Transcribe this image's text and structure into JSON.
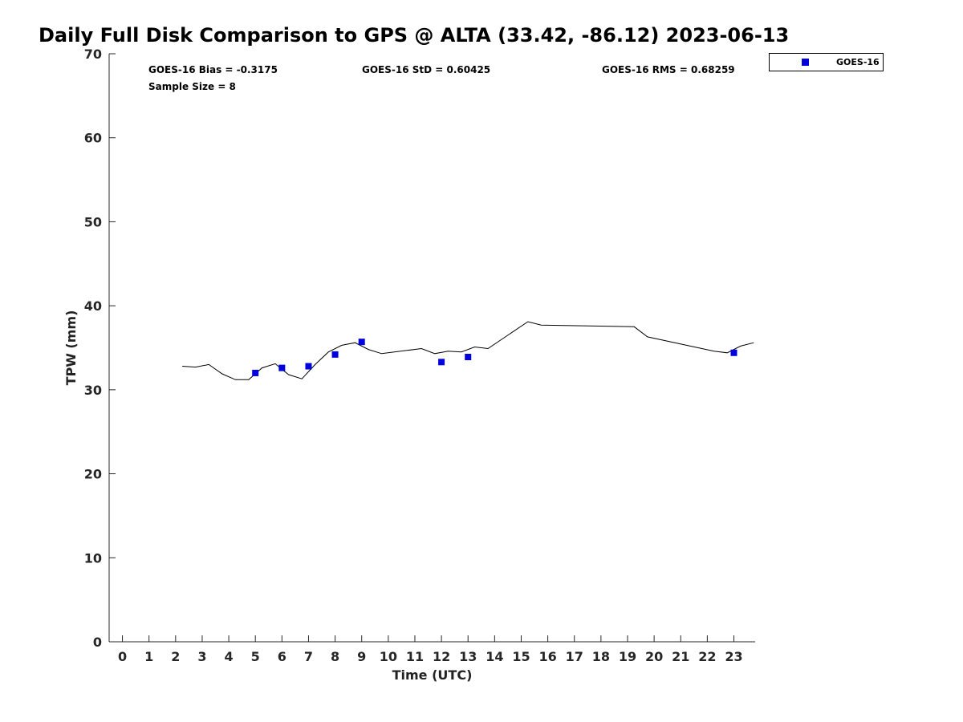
{
  "chart_data": {
    "type": "scatter",
    "title": "Daily Full Disk Comparison to GPS @ ALTA (33.42, -86.12) 2023-06-13",
    "xlabel": "Time (UTC)",
    "ylabel": "TPW (mm)",
    "xlim": [
      -0.5,
      23.8
    ],
    "ylim": [
      0,
      70
    ],
    "xticks": [
      0,
      1,
      2,
      3,
      4,
      5,
      6,
      7,
      8,
      9,
      10,
      11,
      12,
      13,
      14,
      15,
      16,
      17,
      18,
      19,
      20,
      21,
      22,
      23
    ],
    "yticks": [
      0,
      10,
      20,
      30,
      40,
      50,
      60,
      70
    ],
    "grid": false,
    "legend_position": "top-right-outside",
    "stats": {
      "bias": "GOES-16 Bias = -0.3175",
      "std": "GOES-16 StD = 0.60425",
      "rms": "GOES-16 RMS = 0.68259",
      "sample_size": "Sample Size = 8"
    },
    "series": [
      {
        "name": "GOES-16",
        "kind": "scatter",
        "marker": "square",
        "color": "#0000dd",
        "points": [
          {
            "x": 5.0,
            "y": 32.0
          },
          {
            "x": 6.0,
            "y": 32.6
          },
          {
            "x": 7.0,
            "y": 32.8
          },
          {
            "x": 8.0,
            "y": 34.2
          },
          {
            "x": 9.0,
            "y": 35.7
          },
          {
            "x": 12.0,
            "y": 33.3
          },
          {
            "x": 13.0,
            "y": 33.9
          },
          {
            "x": 23.0,
            "y": 34.4
          }
        ]
      },
      {
        "kind": "line",
        "color": "#000000",
        "points": [
          {
            "x": 2.25,
            "y": 32.8
          },
          {
            "x": 2.75,
            "y": 32.7
          },
          {
            "x": 3.25,
            "y": 33.0
          },
          {
            "x": 3.75,
            "y": 31.9
          },
          {
            "x": 4.25,
            "y": 31.2
          },
          {
            "x": 4.75,
            "y": 31.2
          },
          {
            "x": 5.25,
            "y": 32.6
          },
          {
            "x": 5.75,
            "y": 33.1
          },
          {
            "x": 6.25,
            "y": 31.8
          },
          {
            "x": 6.75,
            "y": 31.3
          },
          {
            "x": 7.25,
            "y": 33.0
          },
          {
            "x": 7.75,
            "y": 34.5
          },
          {
            "x": 8.25,
            "y": 35.3
          },
          {
            "x": 8.75,
            "y": 35.6
          },
          {
            "x": 9.25,
            "y": 34.8
          },
          {
            "x": 9.75,
            "y": 34.3
          },
          {
            "x": 11.25,
            "y": 34.9
          },
          {
            "x": 11.75,
            "y": 34.3
          },
          {
            "x": 12.25,
            "y": 34.6
          },
          {
            "x": 12.75,
            "y": 34.5
          },
          {
            "x": 13.25,
            "y": 35.1
          },
          {
            "x": 13.75,
            "y": 34.9
          },
          {
            "x": 15.25,
            "y": 38.1
          },
          {
            "x": 15.75,
            "y": 37.7
          },
          {
            "x": 19.25,
            "y": 37.5
          },
          {
            "x": 19.75,
            "y": 36.3
          },
          {
            "x": 22.25,
            "y": 34.6
          },
          {
            "x": 22.75,
            "y": 34.4
          },
          {
            "x": 23.25,
            "y": 35.2
          },
          {
            "x": 23.75,
            "y": 35.6
          }
        ]
      }
    ]
  }
}
